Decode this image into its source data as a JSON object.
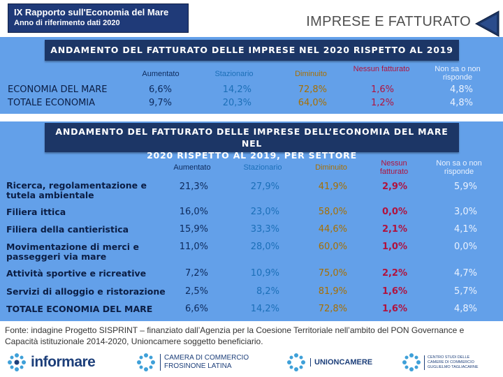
{
  "header": {
    "report_title": "IX Rapporto sull'Economia del Mare",
    "report_subtitle": "Anno di riferimento dati 2020",
    "slide_title": "IMPRESE E FATTURATO"
  },
  "table1": {
    "title": "ANDAMENTO DEL FATTURATO DELLE IMPRESE NEL 2020 RISPETTO AL 2019",
    "columns": [
      "Aumentato",
      "Stazionario",
      "Diminuito",
      "Nessun fatturato",
      "Non sa o non risponde"
    ],
    "rows": [
      {
        "label": "ECONOMIA DEL MARE",
        "values": [
          "6,6%",
          "14,2%",
          "72,8%",
          "1,6%",
          "4,8%"
        ]
      },
      {
        "label": "TOTALE ECONOMIA",
        "values": [
          "9,7%",
          "20,3%",
          "64,0%",
          "1,2%",
          "4,8%"
        ]
      }
    ]
  },
  "table2": {
    "title_line1": "ANDAMENTO DEL FATTURATO DELLE IMPRESE DELL’ECONOMIA DEL MARE NEL",
    "title_line2": "2020 RISPETTO AL 2019, PER SETTORE",
    "columns": [
      "Aumentato",
      "Stazionario",
      "Diminuito",
      "Nessun fatturato",
      "Non sa o non risponde"
    ],
    "rows": [
      {
        "label": "Ricerca, regolamentazione e tutela ambientale",
        "values": [
          "21,3%",
          "27,9%",
          "41,9%",
          "2,9%",
          "5,9%"
        ]
      },
      {
        "label": "Filiera ittica",
        "values": [
          "16,0%",
          "23,0%",
          "58,0%",
          "0,0%",
          "3,0%"
        ]
      },
      {
        "label": "Filiera della cantieristica",
        "values": [
          "15,9%",
          "33,3%",
          "44,6%",
          "2,1%",
          "4,1%"
        ]
      },
      {
        "label": "Movimentazione di merci e passeggeri via mare",
        "values": [
          "11,0%",
          "28,0%",
          "60,0%",
          "1,0%",
          "0,0%"
        ]
      },
      {
        "label": "Attività sportive e ricreative",
        "values": [
          "7,2%",
          "10,9%",
          "75,0%",
          "2,2%",
          "4,7%"
        ]
      },
      {
        "label": "Servizi di alloggio e ristorazione",
        "values": [
          "2,5%",
          "8,2%",
          "81,9%",
          "1,6%",
          "5,7%"
        ]
      },
      {
        "label": "TOTALE ECONOMIA DEL MARE",
        "values": [
          "6,6%",
          "14,2%",
          "72,8%",
          "1,6%",
          "4,8%"
        ]
      }
    ]
  },
  "source_text": "Fonte: indagine Progetto SISPRINT – finanziato dall’Agenzia per la Coesione Territoriale nell’ambito del PON Governance e Capacità istituzionale 2014-2020, Unioncamere soggetto beneficiario.",
  "logos": {
    "informare": "informare",
    "camera_line1": "CAMERA DI COMMERCIO",
    "camera_line2": "FROSINONE LATINA",
    "unioncamere": "UNIONCAMERE",
    "tagliacarne_line1": "CENTRO STUDI DELLE",
    "tagliacarne_line2": "CAMERE DI COMMERCIO",
    "tagliacarne_line3": "GUGLIELMO TAGLIACARNE"
  },
  "colors": {
    "band": "#63a0e9",
    "banner": "#1c3666",
    "aumentato": "#0d2a5c",
    "stazionario": "#1c6fb8",
    "diminuito": "#a86f00",
    "nessun": "#b0123e"
  },
  "icons": [
    "back-arrow-icon",
    "logo-star-icon"
  ]
}
